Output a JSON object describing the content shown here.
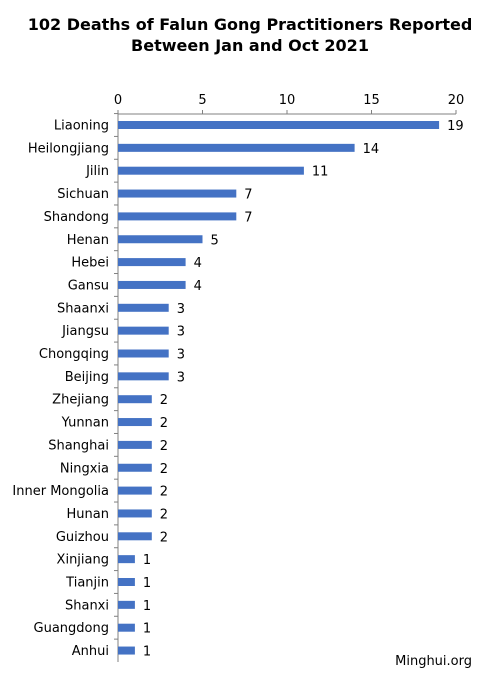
{
  "chart_data": {
    "type": "bar",
    "orientation": "horizontal",
    "title_lines": [
      "102 Deaths of Falun Gong Practitioners Reported",
      "Between Jan and Oct 2021"
    ],
    "categories": [
      "Liaoning",
      "Heilongjiang",
      "Jilin",
      "Sichuan",
      "Shandong",
      "Henan",
      "Hebei",
      "Gansu",
      "Shaanxi",
      "Jiangsu",
      "Chongqing",
      "Beijing",
      "Zhejiang",
      "Yunnan",
      "Shanghai",
      "Ningxia",
      "Inner Mongolia",
      "Hunan",
      "Guizhou",
      "Xinjiang",
      "Tianjin",
      "Shanxi",
      "Guangdong",
      "Anhui"
    ],
    "values": [
      19,
      14,
      11,
      7,
      7,
      5,
      4,
      4,
      3,
      3,
      3,
      3,
      2,
      2,
      2,
      2,
      2,
      2,
      2,
      1,
      1,
      1,
      1,
      1
    ],
    "xlim": [
      0,
      20
    ],
    "x_ticks": [
      "0",
      "5",
      "10",
      "15",
      "20"
    ],
    "axis_position": "top",
    "data_labels": true,
    "grid": false,
    "legend": "none",
    "bar_color": "#4472C4"
  },
  "source": "Minghui.org"
}
